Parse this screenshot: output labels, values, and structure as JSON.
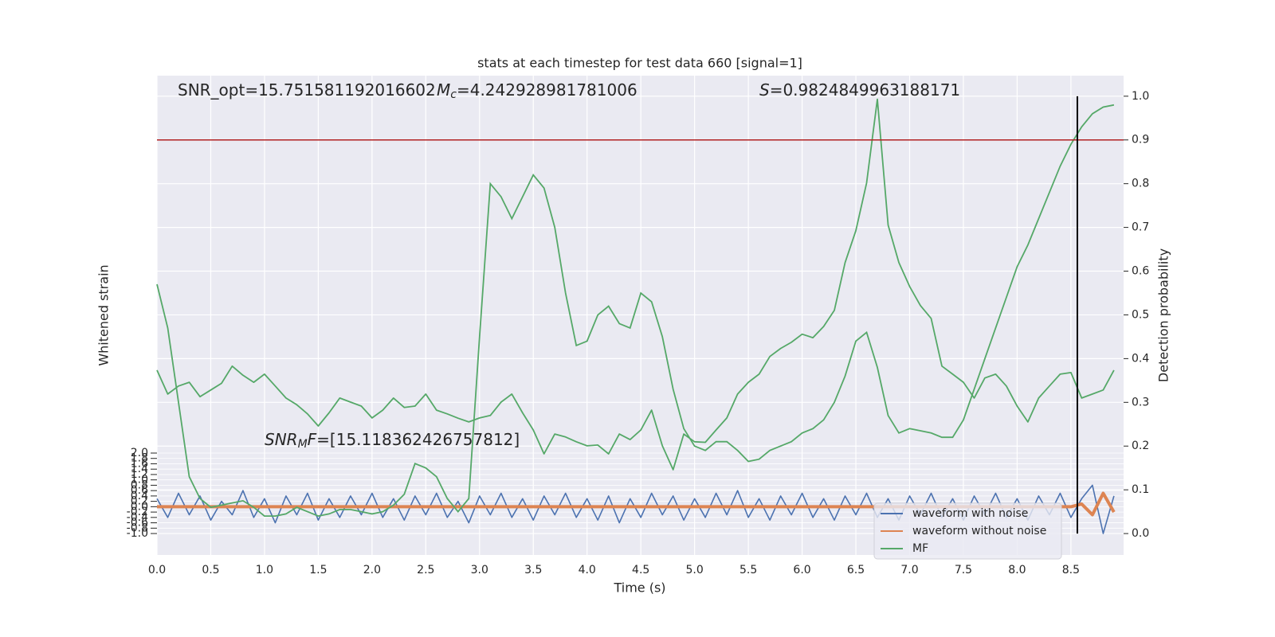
{
  "chart_data": {
    "type": "line",
    "title": "stats at each timestep for test data 660 [signal=1]",
    "xlabel": "Time (s)",
    "ylabel": "Whitened strain",
    "y2label": "Detection probability",
    "annotations": [
      {
        "text": "SNR_opt=15.751581192016602"
      },
      {
        "symbol": "M",
        "sub": "c",
        "text": "=4.242928981781006"
      },
      {
        "symbol": "S",
        "text": "=0.9824849963188171"
      },
      {
        "symbol": "SNR",
        "sub": "M",
        "after": "F",
        "text": "=[15.118362426757812]"
      }
    ],
    "xlim": [
      0,
      8.99
    ],
    "ylim": [
      -1.8,
      16.07
    ],
    "y2lim": [
      -0.049,
      1.047
    ],
    "xticks": [
      {
        "value": 0,
        "label": "0.0"
      },
      0.5,
      {
        "value": 1,
        "label": "1.0"
      },
      1.5,
      {
        "value": 2,
        "label": "2.0"
      },
      2.5,
      {
        "value": 3,
        "label": "3.0"
      },
      3.5,
      {
        "value": 4,
        "label": "4.0"
      },
      4.5,
      {
        "value": 5,
        "label": "5.0"
      },
      5.5,
      {
        "value": 6,
        "label": "6.0"
      },
      6.5,
      {
        "value": 7,
        "label": "7.0"
      },
      7.5,
      {
        "value": 8,
        "label": "8.0"
      },
      8.5
    ],
    "yticks": [
      {
        "value": -1,
        "label": "-1.0"
      },
      -0.8,
      -0.6,
      -0.4,
      -0.2,
      {
        "value": 0,
        "label": "0.0"
      },
      0.2,
      0.4,
      0.6,
      0.8,
      {
        "value": 1,
        "label": "1.0"
      },
      1.2,
      1.4,
      1.6,
      1.8,
      {
        "value": 2,
        "label": "2.0"
      }
    ],
    "y2ticks": [
      {
        "value": 0,
        "label": "0.0"
      },
      0.1,
      0.2,
      0.3,
      0.4,
      0.5,
      0.6,
      0.7,
      0.8,
      0.9,
      {
        "value": 1,
        "label": "1.0"
      }
    ],
    "grid": true,
    "legend": "lower right",
    "x": [
      0,
      0.1,
      0.2,
      0.3,
      0.4,
      0.5,
      0.6,
      0.7,
      0.8,
      0.9,
      1,
      1.1,
      1.2,
      1.3,
      1.4,
      1.5,
      1.6,
      1.7,
      1.8,
      1.9,
      2,
      2.1,
      2.2,
      2.3,
      2.4,
      2.5,
      2.6,
      2.7,
      2.8,
      2.9,
      3,
      3.1,
      3.2,
      3.3,
      3.4,
      3.5,
      3.6,
      3.7,
      3.8,
      3.9,
      4,
      4.1,
      4.2,
      4.3,
      4.4,
      4.5,
      4.6,
      4.7,
      4.8,
      4.9,
      5,
      5.1,
      5.2,
      5.3,
      5.4,
      5.5,
      5.6,
      5.7,
      5.8,
      5.9,
      6,
      6.1,
      6.2,
      6.3,
      6.4,
      6.5,
      6.6,
      6.7,
      6.8,
      6.9,
      7,
      7.1,
      7.2,
      7.3,
      7.4,
      7.5,
      7.6,
      7.7,
      7.8,
      7.9,
      8,
      8.1,
      8.2,
      8.3,
      8.4,
      8.5,
      8.6,
      8.7,
      8.8,
      8.9
    ],
    "series": [
      {
        "name": "waveform with noise",
        "color": "#4c72b0",
        "values": [
          0.3,
          -0.4,
          0.5,
          -0.3,
          0.4,
          -0.5,
          0.2,
          -0.3,
          0.6,
          -0.4,
          0.3,
          -0.6,
          0.4,
          -0.3,
          0.5,
          -0.5,
          0.3,
          -0.4,
          0.4,
          -0.3,
          0.5,
          -0.4,
          0.3,
          -0.5,
          0.4,
          -0.3,
          0.5,
          -0.4,
          0.2,
          -0.6,
          0.4,
          -0.3,
          0.5,
          -0.4,
          0.3,
          -0.5,
          0.4,
          -0.3,
          0.5,
          -0.4,
          0.3,
          -0.5,
          0.4,
          -0.6,
          0.3,
          -0.4,
          0.5,
          -0.3,
          0.4,
          -0.5,
          0.3,
          -0.4,
          0.5,
          -0.3,
          0.6,
          -0.4,
          0.3,
          -0.5,
          0.4,
          -0.3,
          0.5,
          -0.4,
          0.3,
          -0.5,
          0.4,
          -0.3,
          0.5,
          -0.4,
          0.3,
          -0.5,
          0.4,
          -0.3,
          0.5,
          -0.4,
          0.3,
          -0.5,
          0.4,
          -0.3,
          0.5,
          -0.4,
          0.3,
          -0.5,
          0.4,
          -0.3,
          0.5,
          -0.4,
          0.3,
          0.8,
          -1.0,
          0.4
        ]
      },
      {
        "name": "waveform without noise",
        "color": "#dd8452",
        "values": [
          0,
          0,
          0,
          0,
          0,
          0,
          0,
          0,
          0,
          0,
          0,
          0,
          0,
          0,
          0,
          0,
          0,
          0,
          0,
          0,
          0,
          0,
          0,
          0,
          0,
          0,
          0,
          0,
          0,
          0,
          0,
          0,
          0,
          0,
          0,
          0,
          0,
          0,
          0,
          0,
          0,
          0,
          0,
          0,
          0,
          0,
          0,
          0,
          0,
          0,
          0,
          0,
          0,
          0,
          0,
          0,
          0,
          0,
          0,
          0,
          0,
          0,
          0,
          0,
          0,
          0,
          0,
          0,
          0,
          0,
          0,
          0,
          0,
          0,
          0,
          0,
          0,
          0,
          0,
          0,
          0,
          0,
          0,
          0,
          0,
          0,
          0.1,
          -0.3,
          0.5,
          -0.2
        ]
      },
      {
        "name": "MF",
        "color": "#55a868",
        "values": [
          5.09,
          4.2,
          4.5,
          4.64,
          4.1,
          4.35,
          4.6,
          5.24,
          4.9,
          4.64,
          4.94,
          4.5,
          4.05,
          3.8,
          3.46,
          3.01,
          3.5,
          4.05,
          3.9,
          3.75,
          3.31,
          3.6,
          4.05,
          3.7,
          3.75,
          4.2,
          3.6,
          3.46,
          3.3,
          3.16,
          3.31,
          3.4,
          3.9,
          4.2,
          3.5,
          2.86,
          1.97,
          2.71,
          2.6,
          2.42,
          2.27,
          2.3,
          1.97,
          2.71,
          2.5,
          2.86,
          3.6,
          2.27,
          1.38,
          2.71,
          2.42,
          2.4,
          2.86,
          3.31,
          4.2,
          4.64,
          4.94,
          5.6,
          5.9,
          6.13,
          6.43,
          6.3,
          6.72,
          7.32,
          9.1,
          10.29,
          12.07,
          15.19,
          10.5,
          9.1,
          8.21,
          7.5,
          7.02,
          5.24,
          4.94,
          4.64,
          4.05,
          4.8,
          4.94,
          4.5,
          3.75,
          3.16,
          4.05,
          4.5,
          4.94,
          5.0,
          4.05,
          4.2,
          4.35,
          5.09
        ]
      }
    ],
    "y2_series": {
      "axis": "y2",
      "color": "#55a868",
      "values": [
        0.57,
        0.47,
        0.3,
        0.13,
        0.08,
        0.06,
        0.065,
        0.07,
        0.075,
        0.06,
        0.04,
        0.04,
        0.045,
        0.06,
        0.05,
        0.04,
        0.045,
        0.055,
        0.055,
        0.05,
        0.045,
        0.05,
        0.065,
        0.09,
        0.16,
        0.15,
        0.13,
        0.08,
        0.05,
        0.08,
        0.45,
        0.8,
        0.77,
        0.72,
        0.77,
        0.82,
        0.79,
        0.7,
        0.55,
        0.43,
        0.44,
        0.5,
        0.52,
        0.48,
        0.47,
        0.55,
        0.53,
        0.45,
        0.33,
        0.24,
        0.2,
        0.19,
        0.21,
        0.21,
        0.19,
        0.165,
        0.17,
        0.19,
        0.2,
        0.21,
        0.23,
        0.24,
        0.26,
        0.3,
        0.36,
        0.44,
        0.46,
        0.38,
        0.27,
        0.23,
        0.24,
        0.235,
        0.23,
        0.22,
        0.22,
        0.26,
        0.33,
        0.4,
        0.47,
        0.54,
        0.61,
        0.66,
        0.72,
        0.78,
        0.84,
        0.89,
        0.93,
        0.96,
        0.975,
        0.98
      ]
    },
    "threshold": 0.9,
    "threshold_color": "#b22222",
    "vline": 8.56,
    "vline_color": "#000000"
  }
}
